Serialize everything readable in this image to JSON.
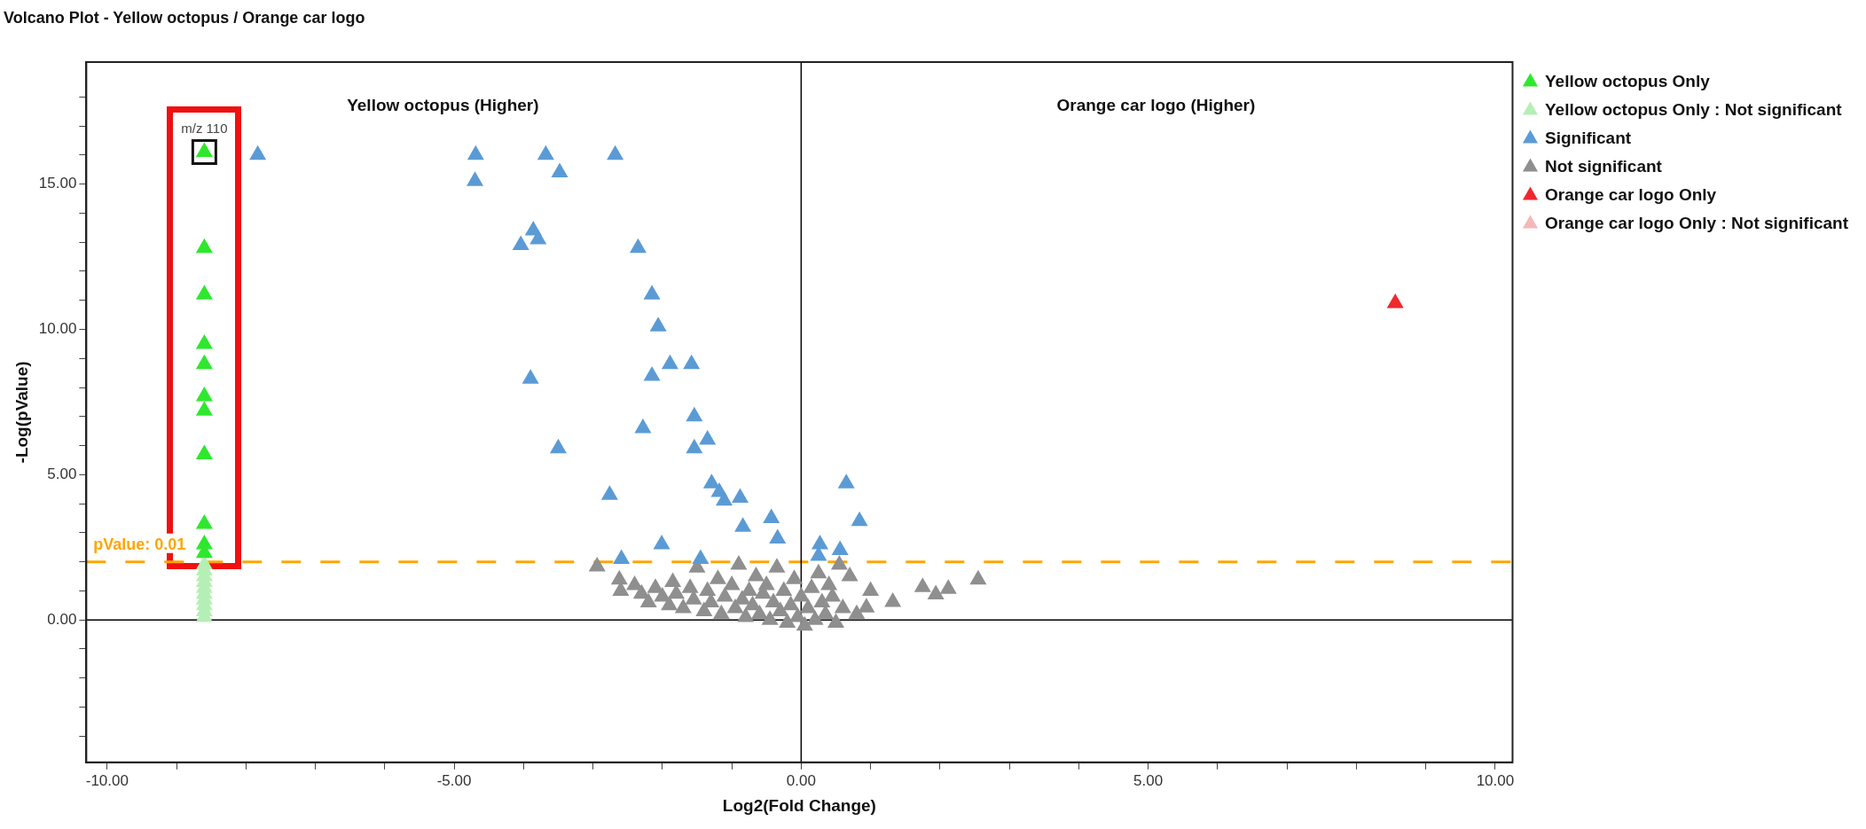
{
  "chart_data": {
    "type": "scatter",
    "title": "Volcano Plot - Yellow octopus / Orange car logo",
    "xlabel": "Log2(Fold Change)",
    "ylabel": "-Log(pValue)",
    "xlim": [
      -10.3,
      10.25
    ],
    "ylim": [
      -4.9,
      19.2
    ],
    "xticks": [
      {
        "value": -10,
        "label": "-10.00"
      },
      {
        "value": -9,
        "label": null
      },
      {
        "value": -8,
        "label": null
      },
      {
        "value": -7,
        "label": null
      },
      {
        "value": -6,
        "label": null
      },
      {
        "value": -5,
        "label": "-5.00"
      },
      {
        "value": -4,
        "label": null
      },
      {
        "value": -3,
        "label": null
      },
      {
        "value": -2,
        "label": null
      },
      {
        "value": -1,
        "label": null
      },
      {
        "value": 0,
        "label": "0.00"
      },
      {
        "value": 1,
        "label": null
      },
      {
        "value": 2,
        "label": null
      },
      {
        "value": 3,
        "label": null
      },
      {
        "value": 4,
        "label": null
      },
      {
        "value": 5,
        "label": "5.00"
      },
      {
        "value": 6,
        "label": null
      },
      {
        "value": 7,
        "label": null
      },
      {
        "value": 8,
        "label": null
      },
      {
        "value": 9,
        "label": null
      },
      {
        "value": 10,
        "label": "10.00"
      }
    ],
    "yticks": [
      {
        "value": -4,
        "label": null
      },
      {
        "value": -3,
        "label": null
      },
      {
        "value": -2,
        "label": null
      },
      {
        "value": -1,
        "label": null
      },
      {
        "value": 0,
        "label": "0.00"
      },
      {
        "value": 1,
        "label": null
      },
      {
        "value": 2,
        "label": null
      },
      {
        "value": 3,
        "label": null
      },
      {
        "value": 4,
        "label": null
      },
      {
        "value": 5,
        "label": "5.00"
      },
      {
        "value": 6,
        "label": null
      },
      {
        "value": 7,
        "label": null
      },
      {
        "value": 8,
        "label": null
      },
      {
        "value": 9,
        "label": null
      },
      {
        "value": 10,
        "label": "10.00"
      },
      {
        "value": 11,
        "label": null
      },
      {
        "value": 12,
        "label": null
      },
      {
        "value": 13,
        "label": null
      },
      {
        "value": 14,
        "label": null
      },
      {
        "value": 15,
        "label": "15.00"
      },
      {
        "value": 16,
        "label": null
      },
      {
        "value": 17,
        "label": null
      },
      {
        "value": 18,
        "label": null
      }
    ],
    "grid": false,
    "legend": "top right",
    "marker": "triangle",
    "ref_lines": [
      {
        "axis": "y",
        "value": 2,
        "color": "#ffa500",
        "line_style": "dashed"
      },
      {
        "axis": "x",
        "value": 0,
        "color": "#000000",
        "line_style": "solid"
      },
      {
        "axis": "y",
        "value": 0,
        "color": "#000000",
        "line_style": "solid"
      }
    ],
    "annotations": [
      "Yellow octopus (Higher)",
      "Orange car logo (Higher)",
      {
        "text": "m/z 110",
        "x": -8.6,
        "y": 16.1
      },
      {
        "text": "pValue: 0.01",
        "x": -10.2,
        "y": 2
      }
    ],
    "series": [
      {
        "name": "Yellow octopus Only",
        "color": "#2ee82e",
        "x": [
          -8.6,
          -8.6,
          -8.6,
          -8.6,
          -8.6,
          -8.6,
          -8.6,
          -8.6,
          -8.6,
          -8.6,
          -8.6
        ],
        "values": [
          16.1,
          12.8,
          11.2,
          9.5,
          8.8,
          7.7,
          7.2,
          5.7,
          3.3,
          2.6,
          2.3
        ]
      },
      {
        "name": "Yellow octopus Only : Not significant",
        "color": "#b5efb5",
        "x": [
          -8.6,
          -8.6,
          -8.6,
          -8.6,
          -8.6,
          -8.6,
          -8.6,
          -8.6,
          -8.6,
          -8.6
        ],
        "values": [
          0.1,
          0.3,
          0.5,
          0.7,
          0.9,
          1.1,
          1.3,
          1.5,
          1.7,
          1.9
        ]
      },
      {
        "name": "Significant",
        "color": "#5b9bd5",
        "x": [
          -7.83,
          -4.69,
          -4.7,
          -3.68,
          -3.48,
          -2.68,
          -3.86,
          -3.79,
          -4.04,
          -2.35,
          -2.15,
          -2.06,
          -1.89,
          -1.58,
          -2.15,
          -3.9,
          -1.54,
          -2.28,
          -1.35,
          -1.54,
          -3.5,
          -1.29,
          -1.18,
          -1.11,
          -0.88,
          -2.76,
          -2.01,
          -0.84,
          -0.43,
          -0.34,
          -2.59,
          -1.45,
          0.27,
          0.56,
          0.65,
          0.84,
          0.25
        ],
        "values": [
          16.0,
          16.0,
          15.1,
          16.0,
          15.4,
          16.0,
          13.4,
          13.1,
          12.9,
          12.8,
          11.2,
          10.1,
          8.8,
          8.8,
          8.4,
          8.3,
          7.0,
          6.6,
          6.2,
          5.9,
          5.9,
          4.7,
          4.4,
          4.1,
          4.2,
          4.3,
          2.6,
          3.2,
          3.5,
          2.8,
          2.1,
          2.1,
          2.6,
          2.4,
          4.7,
          3.4,
          2.2
        ]
      },
      {
        "name": "Not significant",
        "color": "#8f8f8f",
        "x": [
          -2.94,
          -2.62,
          -2.6,
          -2.4,
          -2.3,
          -2.2,
          -2.1,
          -2.0,
          -1.9,
          -1.85,
          -1.8,
          -1.7,
          -1.6,
          -1.55,
          -1.5,
          -1.4,
          -1.35,
          -1.3,
          -1.2,
          -1.15,
          -1.1,
          -1.0,
          -0.95,
          -0.9,
          -0.85,
          -0.8,
          -0.75,
          -0.7,
          -0.65,
          -0.6,
          -0.55,
          -0.5,
          -0.45,
          -0.4,
          -0.35,
          -0.3,
          -0.25,
          -0.2,
          -0.15,
          -0.1,
          -0.05,
          0.0,
          0.05,
          0.1,
          0.15,
          0.2,
          0.25,
          0.3,
          0.35,
          0.4,
          0.45,
          0.5,
          0.55,
          0.6,
          0.7,
          0.8,
          0.94,
          1.0,
          1.32,
          1.75,
          1.94,
          2.12,
          2.55
        ],
        "values": [
          1.84,
          1.39,
          1.0,
          1.2,
          0.9,
          0.6,
          1.1,
          0.8,
          0.5,
          1.3,
          0.9,
          0.4,
          1.1,
          0.7,
          1.8,
          0.3,
          1.0,
          0.6,
          1.4,
          0.2,
          0.8,
          1.2,
          0.4,
          1.9,
          0.7,
          0.1,
          1.0,
          0.5,
          1.5,
          0.2,
          0.9,
          1.2,
          0.0,
          0.6,
          1.8,
          0.3,
          1.0,
          -0.1,
          0.5,
          1.4,
          0.1,
          0.8,
          -0.2,
          0.4,
          1.1,
          0.0,
          1.6,
          0.6,
          0.2,
          1.2,
          0.8,
          -0.1,
          1.9,
          0.4,
          1.5,
          0.2,
          0.43,
          1.0,
          0.62,
          1.13,
          0.88,
          1.07,
          1.39
        ]
      },
      {
        "name": "Orange car logo Only",
        "color": "#f0282d",
        "x": [
          8.56
        ],
        "values": [
          10.9
        ]
      },
      {
        "name": "Orange car logo Only : Not significant",
        "color": "#f5b8b8"
      }
    ]
  }
}
